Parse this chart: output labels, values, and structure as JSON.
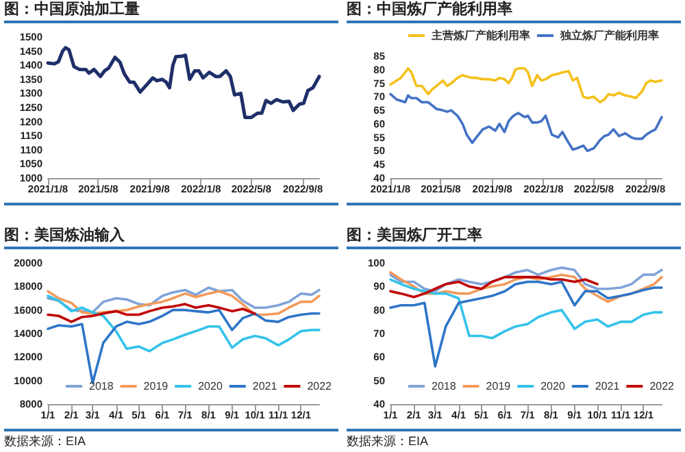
{
  "chart_data": [
    {
      "type": "line",
      "title": "图：中国原油加工量",
      "marker": "none",
      "grid": false,
      "legend": false,
      "x": [
        "2021-01-08",
        "2021-01-23",
        "2021-02-02",
        "2021-02-12",
        "2021-02-19",
        "2021-02-27",
        "2021-03-11",
        "2021-03-24",
        "2021-04-08",
        "2021-04-16",
        "2021-04-28",
        "2021-05-13",
        "2021-05-23",
        "2021-06-02",
        "2021-06-17",
        "2021-06-29",
        "2021-07-09",
        "2021-07-22",
        "2021-08-01",
        "2021-08-16",
        "2021-08-31",
        "2021-09-15",
        "2021-09-25",
        "2021-10-07",
        "2021-10-17",
        "2021-10-25",
        "2021-11-02",
        "2021-11-09",
        "2021-11-24",
        "2021-12-02",
        "2021-12-12",
        "2021-12-24",
        "2022-01-03",
        "2022-01-13",
        "2022-01-28",
        "2022-02-12",
        "2022-02-22",
        "2022-03-09",
        "2022-03-19",
        "2022-03-29",
        "2022-04-13",
        "2022-04-23",
        "2022-05-08",
        "2022-05-23",
        "2022-06-02",
        "2022-06-12",
        "2022-06-24",
        "2022-07-07",
        "2022-07-22",
        "2022-08-06",
        "2022-08-16",
        "2022-08-31",
        "2022-09-10",
        "2022-09-20",
        "2022-10-02",
        "2022-10-17"
      ],
      "series": [
        {
          "color": "#1f2f6a",
          "values": [
            1408,
            1405,
            1412,
            1450,
            1462,
            1455,
            1395,
            1385,
            1385,
            1372,
            1385,
            1360,
            1380,
            1390,
            1428,
            1410,
            1370,
            1340,
            1340,
            1305,
            1330,
            1355,
            1345,
            1350,
            1340,
            1320,
            1400,
            1430,
            1432,
            1435,
            1350,
            1380,
            1380,
            1355,
            1375,
            1360,
            1360,
            1380,
            1360,
            1295,
            1300,
            1215,
            1215,
            1230,
            1230,
            1275,
            1265,
            1278,
            1270,
            1272,
            1240,
            1262,
            1265,
            1310,
            1320,
            1360
          ]
        }
      ],
      "xlim": [
        "2021-01-08",
        "2022-10-17"
      ],
      "xticks": [
        {
          "value": "2021-01-08",
          "label": "2021/1/8"
        },
        {
          "value": "2021-05-08",
          "label": "2021/5/8"
        },
        {
          "value": "2021-09-08",
          "label": "2021/9/8"
        },
        {
          "value": "2022-01-08",
          "label": "2022/1/8"
        },
        {
          "value": "2022-05-08",
          "label": "2022/5/8"
        },
        {
          "value": "2022-09-08",
          "label": "2022/9/8"
        }
      ],
      "ylim": [
        1000,
        1500
      ],
      "yticks": [
        1000,
        1050,
        1100,
        1150,
        1200,
        1250,
        1300,
        1350,
        1400,
        1450,
        1500
      ]
    },
    {
      "type": "line",
      "title": "图：中国炼厂产能利用率",
      "marker": "none",
      "grid": false,
      "legend": "top",
      "x": [
        "2021-01-08",
        "2021-01-23",
        "2021-02-02",
        "2021-02-12",
        "2021-02-19",
        "2021-02-27",
        "2021-03-11",
        "2021-03-24",
        "2021-04-08",
        "2021-04-16",
        "2021-04-28",
        "2021-05-13",
        "2021-05-23",
        "2021-06-02",
        "2021-06-17",
        "2021-06-29",
        "2021-07-09",
        "2021-07-22",
        "2021-08-01",
        "2021-08-16",
        "2021-08-31",
        "2021-09-15",
        "2021-09-25",
        "2021-10-07",
        "2021-10-17",
        "2021-10-25",
        "2021-11-02",
        "2021-11-09",
        "2021-11-24",
        "2021-12-02",
        "2021-12-12",
        "2021-12-24",
        "2022-01-03",
        "2022-01-13",
        "2022-01-28",
        "2022-02-12",
        "2022-02-22",
        "2022-03-09",
        "2022-03-19",
        "2022-03-29",
        "2022-04-13",
        "2022-04-23",
        "2022-05-08",
        "2022-05-23",
        "2022-06-02",
        "2022-06-12",
        "2022-06-24",
        "2022-07-07",
        "2022-07-22",
        "2022-08-06",
        "2022-08-16",
        "2022-08-31",
        "2022-09-10",
        "2022-09-20",
        "2022-10-02",
        "2022-10-17"
      ],
      "series": [
        {
          "name": "主营炼厂产能利用率",
          "color": "#f5c01a",
          "values": [
            74.5,
            76,
            77,
            79,
            80.5,
            79,
            74,
            74,
            71,
            72.5,
            74,
            76,
            74,
            75,
            77,
            78,
            77.5,
            77,
            77,
            76.5,
            76.5,
            76,
            77,
            76.5,
            75,
            77,
            80,
            80.5,
            80.5,
            79,
            74,
            78,
            76,
            76.5,
            78,
            78.5,
            79,
            79.5,
            76,
            77,
            70,
            69.5,
            70,
            68,
            69,
            71,
            70.5,
            71.5,
            70.5,
            70,
            69.5,
            72,
            75,
            76,
            75.5,
            76
          ]
        },
        {
          "name": "独立炼厂产能利用率",
          "color": "#4472c4",
          "values": [
            71,
            69,
            68.5,
            68,
            70.5,
            69.5,
            69.5,
            68,
            68,
            67,
            65.5,
            65,
            64.5,
            65,
            63,
            60,
            56,
            53,
            55,
            58,
            59,
            57.5,
            60,
            57,
            61,
            62.5,
            63.5,
            64,
            62.5,
            63,
            60.5,
            60.5,
            61,
            63,
            56,
            55,
            57,
            53,
            50.5,
            51,
            52,
            50,
            51,
            54,
            55.5,
            56,
            58,
            55.5,
            56.5,
            55,
            54.5,
            54.5,
            56,
            57,
            58,
            62.5
          ]
        }
      ],
      "xlim": [
        "2021-01-08",
        "2022-10-17"
      ],
      "xticks": [
        {
          "value": "2021-01-08",
          "label": "2021/1/8"
        },
        {
          "value": "2021-05-08",
          "label": "2021/5/8"
        },
        {
          "value": "2021-09-08",
          "label": "2021/9/8"
        },
        {
          "value": "2022-01-08",
          "label": "2022/1/8"
        },
        {
          "value": "2022-05-08",
          "label": "2022/5/8"
        },
        {
          "value": "2022-09-08",
          "label": "2022/9/8"
        }
      ],
      "ylim": [
        40,
        85
      ],
      "yticks": [
        40,
        45,
        50,
        55,
        60,
        65,
        70,
        75,
        80,
        85
      ]
    },
    {
      "type": "line",
      "title": "图：美国炼油输入",
      "annotations": [
        "数据来源：EIA"
      ],
      "marker": "none",
      "grid": false,
      "legend": "bottom",
      "x": [
        "--01-01",
        "--01-15",
        "--02-01",
        "--02-15",
        "--03-01",
        "--03-15",
        "--04-01",
        "--04-15",
        "--05-01",
        "--05-15",
        "--06-01",
        "--06-15",
        "--07-01",
        "--07-15",
        "--08-01",
        "--08-15",
        "--09-01",
        "--09-15",
        "--10-01",
        "--10-15",
        "--11-01",
        "--11-15",
        "--12-01",
        "--12-15",
        "--12-25"
      ],
      "series": [
        {
          "name": "2018",
          "color": "#7fa3d8",
          "values": [
            17000,
            16800,
            16000,
            15900,
            15800,
            16700,
            17000,
            16900,
            16500,
            16400,
            17200,
            17500,
            17700,
            17300,
            17900,
            17600,
            17700,
            16800,
            16200,
            16200,
            16400,
            16700,
            17400,
            17300,
            17700
          ]
        },
        {
          "name": "2019",
          "color": "#f39a5a",
          "values": [
            17600,
            17000,
            16600,
            15800,
            15700,
            15800,
            15900,
            16000,
            16300,
            16500,
            16700,
            17000,
            17400,
            17100,
            17400,
            17600,
            17200,
            16500,
            15600,
            15600,
            15700,
            16200,
            16700,
            16700,
            17200
          ]
        },
        {
          "name": "2020",
          "color": "#33c3ea",
          "values": [
            17200,
            16800,
            15900,
            16200,
            15800,
            15500,
            14200,
            12700,
            12900,
            12500,
            13200,
            13500,
            13900,
            14200,
            14600,
            14600,
            12800,
            13500,
            13800,
            13600,
            13000,
            13500,
            14200,
            14300,
            14300
          ]
        },
        {
          "name": "2021",
          "color": "#2e75c8",
          "values": [
            14400,
            14700,
            14600,
            14800,
            9800,
            13200,
            14600,
            15000,
            14800,
            15000,
            15500,
            16000,
            16000,
            15900,
            15800,
            16000,
            14300,
            15300,
            15700,
            15100,
            15000,
            15400,
            15600,
            15700,
            15700
          ]
        },
        {
          "name": "2022",
          "color": "#c00000",
          "values": [
            15600,
            15500,
            15000,
            15400,
            15500,
            15700,
            15900,
            15600,
            15600,
            15900,
            16200,
            16300,
            16500,
            16200,
            16400,
            16200,
            15900,
            16100,
            15700,
            null,
            null,
            null,
            null,
            null,
            null
          ]
        }
      ],
      "xlim": [
        "--01-01",
        "--12-25"
      ],
      "xticks": [
        {
          "value": "--01-01",
          "label": "1/1"
        },
        {
          "value": "--02-01",
          "label": "2/1"
        },
        {
          "value": "--03-01",
          "label": "3/1"
        },
        {
          "value": "--04-01",
          "label": "4/1"
        },
        {
          "value": "--05-01",
          "label": "5/1"
        },
        {
          "value": "--06-01",
          "label": "6/1"
        },
        {
          "value": "--07-01",
          "label": "7/1"
        },
        {
          "value": "--08-01",
          "label": "8/1"
        },
        {
          "value": "--09-01",
          "label": "9/1"
        },
        {
          "value": "--10-01",
          "label": "10/1"
        },
        {
          "value": "--11-01",
          "label": "11/1"
        },
        {
          "value": "--12-01",
          "label": "12/1"
        }
      ],
      "ylim": [
        8000,
        20000
      ],
      "yticks": [
        8000,
        10000,
        12000,
        14000,
        16000,
        18000,
        20000
      ]
    },
    {
      "type": "line",
      "title": "图：美国炼厂开工率",
      "annotations": [
        "数据来源：EIA"
      ],
      "marker": "none",
      "grid": false,
      "legend": "bottom",
      "x": [
        "--01-01",
        "--01-15",
        "--02-01",
        "--02-15",
        "--03-01",
        "--03-15",
        "--04-01",
        "--04-15",
        "--05-01",
        "--05-15",
        "--06-01",
        "--06-15",
        "--07-01",
        "--07-15",
        "--08-01",
        "--08-15",
        "--09-01",
        "--09-15",
        "--10-01",
        "--10-15",
        "--11-01",
        "--11-15",
        "--12-01",
        "--12-15",
        "--12-25"
      ],
      "series": [
        {
          "name": "2018",
          "color": "#7fa3d8",
          "values": [
            95,
            92,
            92,
            89,
            88,
            91,
            93,
            92,
            91,
            92,
            94,
            96,
            97,
            95,
            97,
            98,
            97,
            91,
            89,
            89,
            89.5,
            91,
            95,
            95,
            97
          ]
        },
        {
          "name": "2019",
          "color": "#f39a5a",
          "values": [
            96,
            93,
            90,
            87,
            87,
            88,
            87,
            87,
            89,
            90,
            91,
            93,
            94,
            93,
            94,
            95,
            94,
            89,
            86,
            83.5,
            86,
            87,
            89,
            91,
            94
          ]
        },
        {
          "name": "2020",
          "color": "#33c3ea",
          "values": [
            93,
            91,
            89,
            88,
            87,
            87,
            85,
            69,
            69,
            68,
            71,
            73,
            74,
            77,
            79,
            80,
            72,
            75,
            76,
            73,
            75,
            75,
            78,
            79,
            79
          ]
        },
        {
          "name": "2021",
          "color": "#2e75c8",
          "values": [
            81,
            82,
            82,
            83,
            56,
            73,
            83,
            84,
            85,
            86,
            88,
            91,
            92,
            92,
            91,
            92,
            82,
            88,
            88,
            85,
            86,
            87,
            88.5,
            89.5,
            89.5
          ]
        },
        {
          "name": "2022",
          "color": "#c00000",
          "values": [
            88,
            87,
            85.5,
            87,
            89,
            91,
            92,
            90,
            89,
            92,
            94,
            94,
            94,
            94,
            93,
            93,
            92,
            93,
            91,
            null,
            null,
            null,
            null,
            null,
            null
          ]
        }
      ],
      "xlim": [
        "--01-01",
        "--12-25"
      ],
      "xticks": [
        {
          "value": "--01-01",
          "label": "1/1"
        },
        {
          "value": "--02-01",
          "label": "2/1"
        },
        {
          "value": "--03-01",
          "label": "3/1"
        },
        {
          "value": "--04-01",
          "label": "4/1"
        },
        {
          "value": "--05-01",
          "label": "5/1"
        },
        {
          "value": "--06-01",
          "label": "6/1"
        },
        {
          "value": "--07-01",
          "label": "7/1"
        },
        {
          "value": "--08-01",
          "label": "8/1"
        },
        {
          "value": "--09-01",
          "label": "9/1"
        },
        {
          "value": "--10-01",
          "label": "10/1"
        },
        {
          "value": "--11-01",
          "label": "11/1"
        },
        {
          "value": "--12-01",
          "label": "12/1"
        }
      ],
      "ylim": [
        40,
        100
      ],
      "yticks": [
        40,
        50,
        60,
        70,
        80,
        90,
        100
      ]
    }
  ]
}
